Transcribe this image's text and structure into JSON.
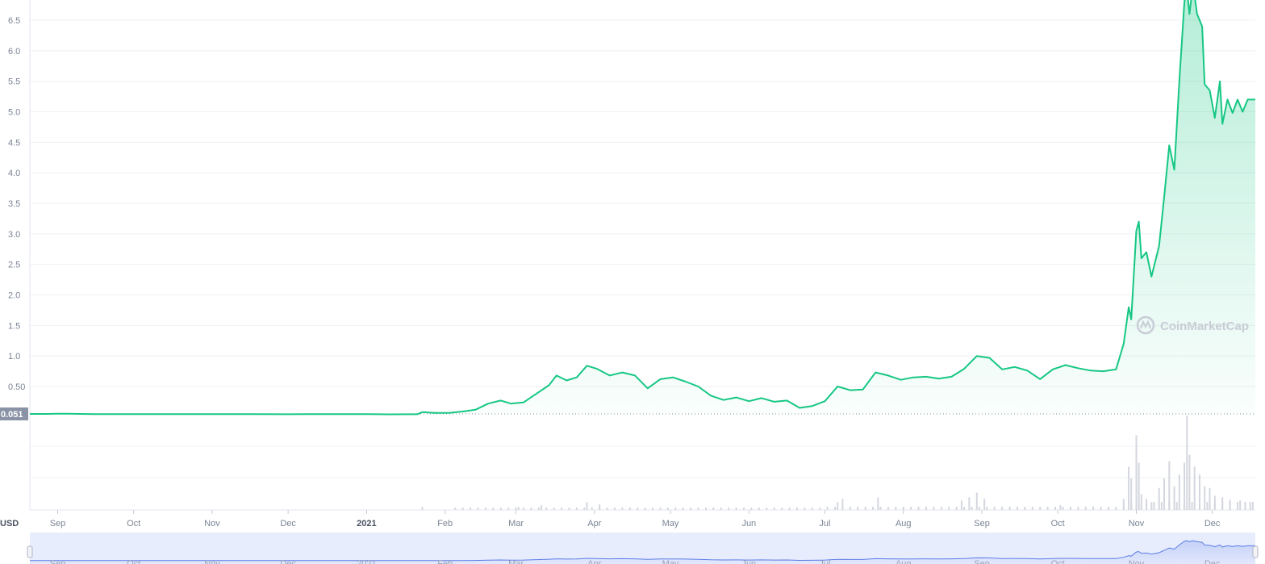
{
  "chart_data": {
    "type": "area",
    "currency": "USD",
    "current_price_label": "0.051",
    "watermark": "CoinMarketCap",
    "ylim": [
      0,
      7.0
    ],
    "y_ticks": [
      "0.50",
      "1.0",
      "1.5",
      "2.0",
      "2.5",
      "3.0",
      "3.5",
      "4.0",
      "4.5",
      "5.0",
      "5.5",
      "6.0",
      "6.5"
    ],
    "x_ticks": [
      "Sep",
      "Oct",
      "Nov",
      "Dec",
      "2021",
      "Feb",
      "Mar",
      "Apr",
      "May",
      "Jun",
      "Jul",
      "Aug",
      "Sep",
      "Oct",
      "Nov",
      "Dec"
    ],
    "x_start": "2020-08-21",
    "x_end": "2021-12-18",
    "colors": {
      "line": "#16c784",
      "fill": "#16c784",
      "volume": "#d4d7df",
      "navigator": "#e8edfd",
      "grid": "#eef0f4"
    },
    "series": [
      {
        "values": [
          [
            "2020-08-21",
            0.051
          ],
          [
            "2020-08-28",
            0.051
          ],
          [
            "2020-09-01",
            0.055
          ],
          [
            "2020-09-05",
            0.053
          ],
          [
            "2020-09-15",
            0.049
          ],
          [
            "2020-10-15",
            0.049
          ],
          [
            "2020-11-15",
            0.048
          ],
          [
            "2020-12-01",
            0.046
          ],
          [
            "2020-12-15",
            0.048
          ],
          [
            "2021-01-01",
            0.047
          ],
          [
            "2021-01-10",
            0.045
          ],
          [
            "2021-01-21",
            0.046
          ],
          [
            "2021-01-23",
            0.08
          ],
          [
            "2021-01-28",
            0.068
          ],
          [
            "2021-02-03",
            0.07
          ],
          [
            "2021-02-08",
            0.09
          ],
          [
            "2021-02-13",
            0.12
          ],
          [
            "2021-02-18",
            0.22
          ],
          [
            "2021-02-23",
            0.27
          ],
          [
            "2021-02-27",
            0.22
          ],
          [
            "2021-03-04",
            0.24
          ],
          [
            "2021-03-09",
            0.38
          ],
          [
            "2021-03-14",
            0.52
          ],
          [
            "2021-03-17",
            0.68
          ],
          [
            "2021-03-21",
            0.6
          ],
          [
            "2021-03-25",
            0.65
          ],
          [
            "2021-03-29",
            0.84
          ],
          [
            "2021-04-02",
            0.79
          ],
          [
            "2021-04-07",
            0.68
          ],
          [
            "2021-04-12",
            0.73
          ],
          [
            "2021-04-17",
            0.68
          ],
          [
            "2021-04-22",
            0.47
          ],
          [
            "2021-04-27",
            0.62
          ],
          [
            "2021-05-02",
            0.65
          ],
          [
            "2021-05-07",
            0.58
          ],
          [
            "2021-05-12",
            0.5
          ],
          [
            "2021-05-17",
            0.35
          ],
          [
            "2021-05-22",
            0.28
          ],
          [
            "2021-05-27",
            0.32
          ],
          [
            "2021-06-01",
            0.26
          ],
          [
            "2021-06-06",
            0.31
          ],
          [
            "2021-06-11",
            0.25
          ],
          [
            "2021-06-16",
            0.27
          ],
          [
            "2021-06-21",
            0.15
          ],
          [
            "2021-06-26",
            0.18
          ],
          [
            "2021-07-01",
            0.26
          ],
          [
            "2021-07-06",
            0.5
          ],
          [
            "2021-07-11",
            0.44
          ],
          [
            "2021-07-16",
            0.45
          ],
          [
            "2021-07-21",
            0.73
          ],
          [
            "2021-07-26",
            0.68
          ],
          [
            "2021-07-31",
            0.61
          ],
          [
            "2021-08-05",
            0.65
          ],
          [
            "2021-08-10",
            0.66
          ],
          [
            "2021-08-15",
            0.63
          ],
          [
            "2021-08-20",
            0.66
          ],
          [
            "2021-08-25",
            0.79
          ],
          [
            "2021-08-30",
            1.0
          ],
          [
            "2021-09-04",
            0.97
          ],
          [
            "2021-09-09",
            0.78
          ],
          [
            "2021-09-14",
            0.82
          ],
          [
            "2021-09-19",
            0.76
          ],
          [
            "2021-09-24",
            0.62
          ],
          [
            "2021-09-29",
            0.78
          ],
          [
            "2021-10-04",
            0.85
          ],
          [
            "2021-10-09",
            0.8
          ],
          [
            "2021-10-14",
            0.76
          ],
          [
            "2021-10-19",
            0.75
          ],
          [
            "2021-10-24",
            0.78
          ],
          [
            "2021-10-27",
            1.2
          ],
          [
            "2021-10-29",
            1.8
          ],
          [
            "2021-10-30",
            1.6
          ],
          [
            "2021-11-01",
            3.05
          ],
          [
            "2021-11-02",
            3.2
          ],
          [
            "2021-11-03",
            2.6
          ],
          [
            "2021-11-05",
            2.7
          ],
          [
            "2021-11-07",
            2.3
          ],
          [
            "2021-11-10",
            2.8
          ],
          [
            "2021-11-12",
            3.6
          ],
          [
            "2021-11-14",
            4.45
          ],
          [
            "2021-11-16",
            4.05
          ],
          [
            "2021-11-18",
            5.5
          ],
          [
            "2021-11-20",
            6.8
          ],
          [
            "2021-11-21",
            7.0
          ],
          [
            "2021-11-22",
            6.6
          ],
          [
            "2021-11-23",
            6.95
          ],
          [
            "2021-11-24",
            6.9
          ],
          [
            "2021-11-25",
            6.6
          ],
          [
            "2021-11-27",
            6.4
          ],
          [
            "2021-11-28",
            5.45
          ],
          [
            "2021-11-30",
            5.35
          ],
          [
            "2021-12-02",
            4.9
          ],
          [
            "2021-12-04",
            5.5
          ],
          [
            "2021-12-05",
            4.8
          ],
          [
            "2021-12-07",
            5.2
          ],
          [
            "2021-12-09",
            4.98
          ],
          [
            "2021-12-11",
            5.2
          ],
          [
            "2021-12-13",
            5.0
          ],
          [
            "2021-12-15",
            5.2
          ],
          [
            "2021-12-18",
            5.2
          ]
        ]
      }
    ],
    "volume_spikes": [
      [
        "2021-01-23",
        4
      ],
      [
        "2021-03-02",
        4
      ],
      [
        "2021-03-11",
        6
      ],
      [
        "2021-03-29",
        10
      ],
      [
        "2021-04-03",
        7
      ],
      [
        "2021-07-06",
        10
      ],
      [
        "2021-07-08",
        14
      ],
      [
        "2021-07-22",
        16
      ],
      [
        "2021-08-24",
        12
      ],
      [
        "2021-08-27",
        16
      ],
      [
        "2021-08-30",
        22
      ],
      [
        "2021-09-02",
        14
      ],
      [
        "2021-10-02",
        6
      ],
      [
        "2021-10-27",
        14
      ],
      [
        "2021-10-29",
        55
      ],
      [
        "2021-10-30",
        40
      ],
      [
        "2021-11-01",
        95
      ],
      [
        "2021-11-02",
        60
      ],
      [
        "2021-11-03",
        20
      ],
      [
        "2021-11-05",
        14
      ],
      [
        "2021-11-07",
        10
      ],
      [
        "2021-11-10",
        28
      ],
      [
        "2021-11-12",
        40
      ],
      [
        "2021-11-14",
        62
      ],
      [
        "2021-11-16",
        30
      ],
      [
        "2021-11-18",
        45
      ],
      [
        "2021-11-20",
        60
      ],
      [
        "2021-11-21",
        120
      ],
      [
        "2021-11-22",
        70
      ],
      [
        "2021-11-24",
        55
      ],
      [
        "2021-11-26",
        45
      ],
      [
        "2021-11-28",
        30
      ],
      [
        "2021-11-30",
        28
      ],
      [
        "2021-12-02",
        18
      ],
      [
        "2021-12-05",
        16
      ],
      [
        "2021-12-08",
        13
      ],
      [
        "2021-12-12",
        12
      ],
      [
        "2021-12-16",
        10
      ]
    ]
  }
}
